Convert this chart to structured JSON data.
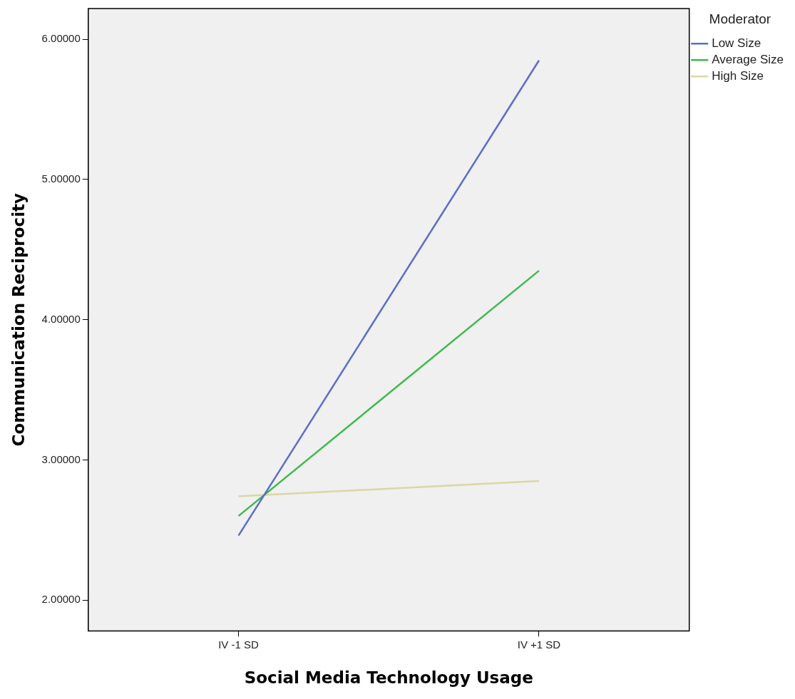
{
  "chart_data": {
    "type": "line",
    "xlabel": "Social Media Technology Usage",
    "ylabel": "Communication Reciprocity",
    "legend_title": "Moderator",
    "categories": [
      "IV -1 SD",
      "IV +1 SD"
    ],
    "series": [
      {
        "name": "Low Size",
        "color": "#5b6ec6",
        "values": [
          2.46,
          5.85
        ]
      },
      {
        "name": "Average Size",
        "color": "#3dba4b",
        "values": [
          2.6,
          4.35
        ]
      },
      {
        "name": "High Size",
        "color": "#dcd6a4",
        "values": [
          2.74,
          2.85
        ]
      }
    ],
    "ylim": [
      1.78,
      6.22
    ],
    "yticks": [
      {
        "value": 2,
        "label": "2.00000"
      },
      {
        "value": 3,
        "label": "3.00000"
      },
      {
        "value": 4,
        "label": "4.00000"
      },
      {
        "value": 5,
        "label": "5.00000"
      },
      {
        "value": 6,
        "label": "6.00000"
      }
    ],
    "grid": false,
    "legend": "top right",
    "marker": "none",
    "line_style": "solid"
  }
}
